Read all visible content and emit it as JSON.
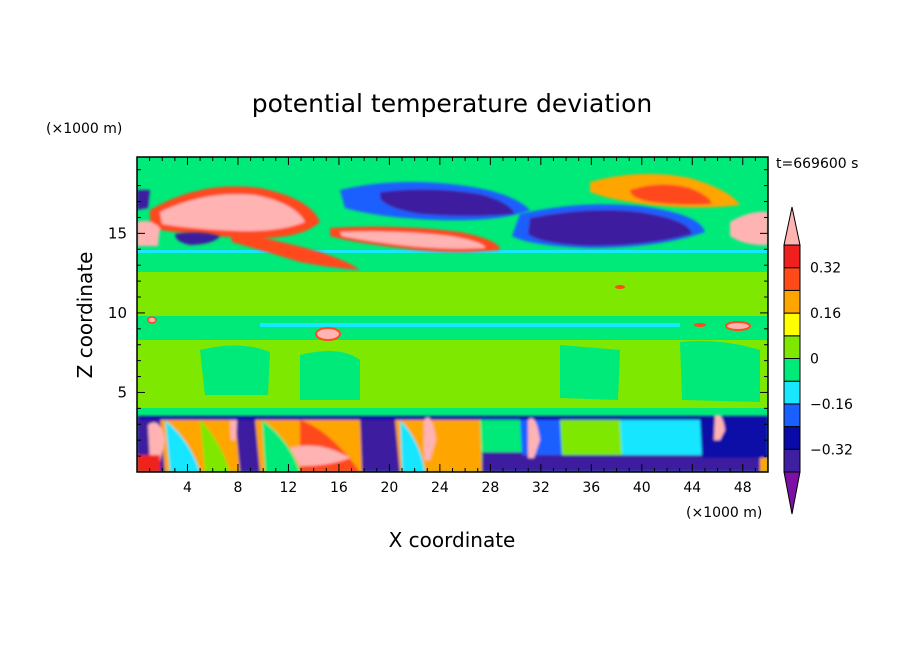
{
  "chart_data": {
    "type": "heatmap",
    "title": "potential temperature deviation",
    "xlabel": "X coordinate",
    "ylabel": "Z coordinate",
    "x_unit": "(×1000 m)",
    "y_unit": "(×1000 m)",
    "time_label": "t=669600 s",
    "xlim": [
      0,
      50
    ],
    "ylim": [
      0,
      19.8
    ],
    "x_ticks": [
      4,
      8,
      12,
      16,
      20,
      24,
      28,
      32,
      36,
      40,
      44,
      48
    ],
    "y_ticks": [
      5,
      10,
      15
    ],
    "colorbar": {
      "levels": [
        -0.4,
        -0.32,
        -0.24,
        -0.16,
        -0.08,
        0,
        0.08,
        0.16,
        0.24,
        0.32,
        0.4
      ],
      "tick_values": [
        0.32,
        0.16,
        0,
        -0.16,
        -0.32
      ],
      "tick_labels": [
        "0.32",
        "0.16",
        "0",
        "−0.16",
        "−0.32"
      ],
      "colors": [
        "#7b0fa6",
        "#3d1fa0",
        "#0a0aa8",
        "#1a5fff",
        "#19e6ff",
        "#00ea7a",
        "#7ee800",
        "#ffff00",
        "#ffa500",
        "#ff4a1a",
        "#f0201e",
        "#ffb3b3"
      ]
    }
  }
}
